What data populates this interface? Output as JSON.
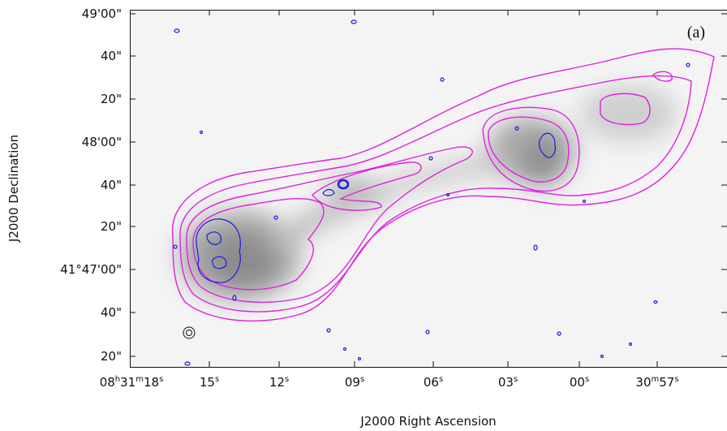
{
  "panel_label": "(a)",
  "x_axis": {
    "title": "J2000 Right Ascension",
    "ticks": [
      [
        "08",
        "h",
        "31",
        "m",
        "18",
        "s"
      ],
      [
        "15",
        "s"
      ],
      [
        "12",
        "s"
      ],
      [
        "09",
        "s"
      ],
      [
        "06",
        "s"
      ],
      [
        "03",
        "s"
      ],
      [
        "00",
        "s"
      ],
      [
        "30",
        "m",
        "57",
        "s"
      ]
    ]
  },
  "y_axis": {
    "title": "J2000 Declination",
    "ticks": [
      "49'00\"",
      "40\"",
      "20\"",
      "48'00\"",
      "40\"",
      "20\"",
      "41°47'00\"",
      "40\"",
      "20\""
    ]
  }
}
